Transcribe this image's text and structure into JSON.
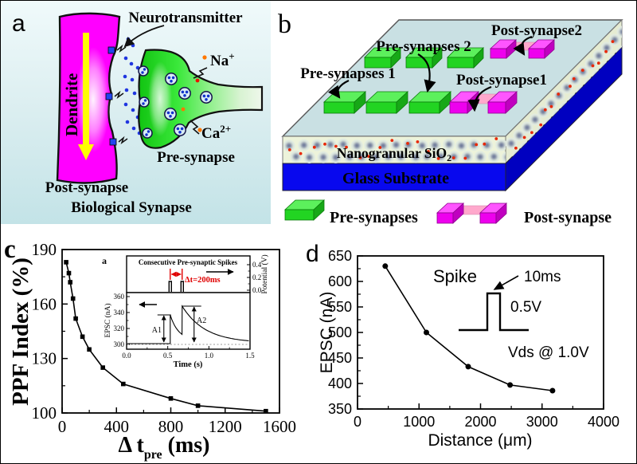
{
  "figure": {
    "letters": {
      "a": "a",
      "b": "b",
      "c": "c",
      "d": "d"
    }
  },
  "colors": {
    "magenta": "#ff00ff",
    "yellow": "#ffff00",
    "blue_dot": "#1f35e0",
    "orange": "#ff7700",
    "red": "#ee1100",
    "slab_top": "#c9e0e3",
    "nano_band": "#edf3da",
    "nano_side": "#e6ecd2",
    "glass_blue": "#0808ee",
    "glass_side": "#0000c0",
    "granule": "#55608a",
    "red_dot": "#e82807",
    "bar_green_front": "#22d422",
    "bar_green_top": "#5cf05c",
    "bar_green_side": "#17a817",
    "post_front": "#ee00ee",
    "post_top": "#ff55ff",
    "post_side": "#c000c0",
    "pink_channel": "#ffa8cc",
    "inset_red": "#e00000",
    "panel_a_bg_top": "#f0fafb",
    "panel_a_bg_bottom": "#c3e3e7",
    "terminal_green": "#13c513"
  },
  "panel_a": {
    "labels": {
      "neurotransmitter": "Neurotransmitter",
      "na": "Na",
      "na_sup": "+",
      "ca": "Ca",
      "ca_sup": "2+",
      "dendrite": "Dendrite",
      "pre_synapse": "Pre-synapse",
      "post_synapse": "Post-synapse",
      "caption": "Biological Synapse"
    }
  },
  "panel_b": {
    "labels": {
      "pre2": "Pre-synapses 2",
      "post2": "Post-synapse2",
      "pre1": "Pre-synapses 1",
      "post1": "Post-synapse1",
      "nano": "Nanogranular SiO",
      "nano_sub": "2",
      "glass": "Glass Substrate",
      "legend_pre": "Pre-synapses",
      "legend_post": "Post-synapse"
    }
  },
  "chart_data": [
    {
      "id": "ppf",
      "type": "line",
      "marker": "square",
      "x": [
        30,
        50,
        60,
        80,
        100,
        150,
        200,
        300,
        450,
        800,
        1000,
        1500
      ],
      "y": [
        183,
        177,
        172,
        163,
        152,
        142,
        135,
        125,
        116,
        108,
        104,
        101
      ],
      "xlabel_main": "Δ t",
      "xlabel_sub": "pre",
      "xlabel_unit": " (ms)",
      "ylabel": "PPF Index (%)",
      "xlim": [
        0,
        1600
      ],
      "ylim": [
        100,
        190
      ],
      "xticks": [
        0,
        400,
        800,
        1200,
        1600
      ],
      "yticks": [
        100,
        130,
        160,
        190
      ],
      "grid": false,
      "legend": "none",
      "inset": {
        "label": "a",
        "title": "Consecutive Pre-synaptic Spikes",
        "right_label": "Potential (V)",
        "right_ticks": [
          "0.0",
          "0.2",
          "0.4"
        ],
        "left_label": "EPSC (nA)",
        "left_ticks": [
          "300",
          "320",
          "340",
          "360"
        ],
        "xlabel": "Time (s)",
        "xticks": [
          "0.0",
          "0.5",
          "1.0",
          "1.5"
        ],
        "time_range": [
          0,
          1.5
        ],
        "epsc_range": [
          300,
          360
        ],
        "potential_range": [
          0,
          0.45
        ],
        "dt_label": "Δt=200ms",
        "a1": "A1",
        "a2": "A2",
        "spikes": {
          "times": [
            0.53,
            0.675
          ],
          "baseline": 301,
          "peaks": [
            337,
            348
          ],
          "decay_to": [
            305,
            302
          ],
          "tau": [
            0.1,
            0.28
          ]
        }
      }
    },
    {
      "id": "epsc",
      "type": "line",
      "marker": "circle",
      "x": [
        450,
        1120,
        1800,
        2480,
        3170
      ],
      "y": [
        630,
        500,
        433,
        397,
        386
      ],
      "xlabel": "Distance (μm)",
      "ylabel": "EPSC (nA)",
      "xlim": [
        0,
        4000
      ],
      "ylim": [
        350,
        650
      ],
      "xticks": [
        0,
        1000,
        2000,
        3000,
        4000
      ],
      "yticks": [
        350,
        400,
        450,
        500,
        550,
        600,
        650
      ],
      "grid": false,
      "legend": "none",
      "annotations": {
        "spike": "Spike",
        "pulse_width": "10ms",
        "pulse_height": "0.5V",
        "bias": "Vds @ 1.0V"
      }
    }
  ]
}
